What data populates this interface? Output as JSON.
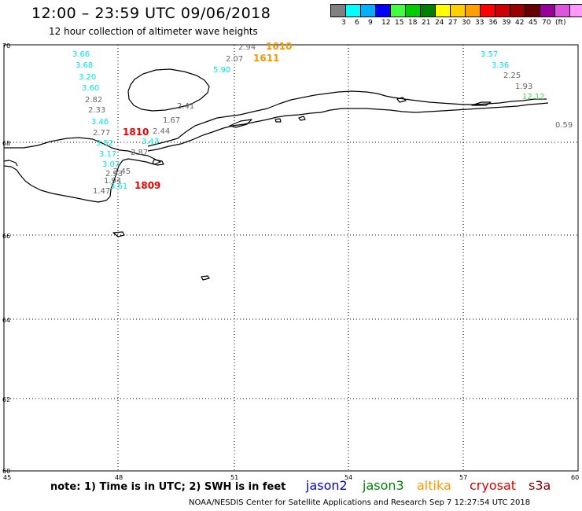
{
  "header": {
    "title": "12:00 – 23:59 UTC 09/06/2018",
    "subtitle": "12 hour collection of altimeter wave heights"
  },
  "scale": {
    "unit": "(ft)",
    "colors": [
      "#808080",
      "#00ffff",
      "#00b0ff",
      "#0000ff",
      "#40ff40",
      "#00cc00",
      "#008000",
      "#ffff00",
      "#ffd000",
      "#ffa000",
      "#ff0000",
      "#cc0000",
      "#990000",
      "#660000",
      "#990099",
      "#dd55dd",
      "#ff99ff",
      "#000000"
    ],
    "labels": [
      "3",
      "6",
      "9",
      "12",
      "15",
      "18",
      "21",
      "24",
      "27",
      "30",
      "33",
      "36",
      "39",
      "42",
      "45",
      "70"
    ]
  },
  "map": {
    "lat_labels": [
      "70",
      "68",
      "66",
      "64",
      "62",
      "60"
    ],
    "lon_labels": [
      "45",
      "48",
      "51",
      "54",
      "57",
      "60"
    ]
  },
  "readings": [
    {
      "text": "3.66",
      "color": "#00e5e5"
    },
    {
      "text": "3.68",
      "color": "#00e5e5"
    },
    {
      "text": "3.20",
      "color": "#00e5e5"
    },
    {
      "text": "3.60",
      "color": "#00e5e5"
    },
    {
      "text": "2.82",
      "color": "#666666"
    },
    {
      "text": "2.33",
      "color": "#666666"
    },
    {
      "text": "3.46",
      "color": "#00e5e5"
    },
    {
      "text": "2.77",
      "color": "#666666"
    },
    {
      "text": "3.52",
      "color": "#00e5e5"
    },
    {
      "text": "3.17",
      "color": "#00e5e5"
    },
    {
      "text": "3.07",
      "color": "#00e5e5"
    },
    {
      "text": "2.45",
      "color": "#666666"
    },
    {
      "text": "2.93",
      "color": "#666666"
    },
    {
      "text": "1.94",
      "color": "#666666"
    },
    {
      "text": "1.47",
      "color": "#666666"
    },
    {
      "text": "3.61",
      "color": "#00e5e5"
    },
    {
      "text": "2.44",
      "color": "#666666"
    },
    {
      "text": "3.43",
      "color": "#00e5e5"
    },
    {
      "text": "2.87",
      "color": "#666666"
    },
    {
      "text": "1.67",
      "color": "#666666"
    },
    {
      "text": "2.41",
      "color": "#666666"
    },
    {
      "text": "2.94",
      "color": "#666666"
    },
    {
      "text": "2.07",
      "color": "#666666"
    },
    {
      "text": "5.90",
      "color": "#00e5e5"
    },
    {
      "text": "3.57",
      "color": "#00e5e5"
    },
    {
      "text": "3.36",
      "color": "#00e5e5"
    },
    {
      "text": "2.25",
      "color": "#666666"
    },
    {
      "text": "1.93",
      "color": "#666666"
    },
    {
      "text": "12.12",
      "color": "#40dd40"
    },
    {
      "text": "0.59",
      "color": "#666666"
    }
  ],
  "tracks": [
    {
      "text": "1810",
      "color": "#ee0000"
    },
    {
      "text": "1809",
      "color": "#ee0000"
    },
    {
      "text": "1610",
      "color": "#ee9900"
    },
    {
      "text": "1611",
      "color": "#ee9900"
    }
  ],
  "note": "note:  1) Time is in UTC;  2) SWH is in feet",
  "satellites": [
    {
      "name": "jason2",
      "color": "#0000cc"
    },
    {
      "name": "jason3",
      "color": "#008800"
    },
    {
      "name": "altika",
      "color": "#ff9900"
    },
    {
      "name": "cryosat",
      "color": "#dd0000"
    },
    {
      "name": "s3a",
      "color": "#880000"
    }
  ],
  "footer": "NOAA/NESDIS Center for Satellite Applications and Research    Sep  7 12:27:54 UTC 2018"
}
